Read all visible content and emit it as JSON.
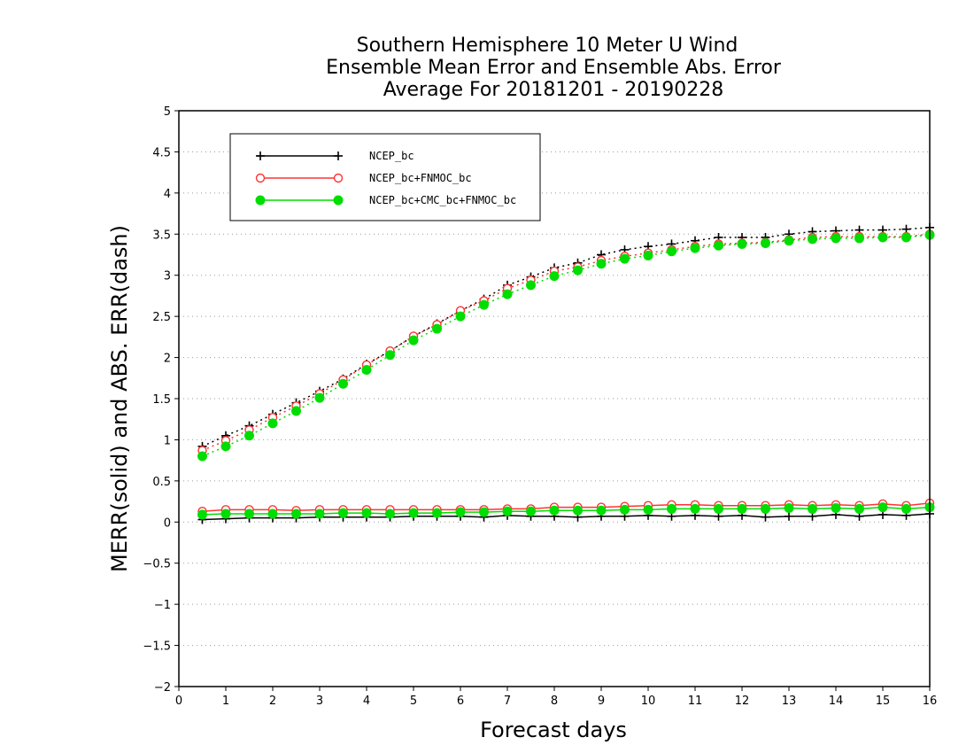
{
  "chart_data": {
    "type": "line",
    "title_lines": [
      "Southern Hemisphere 10 Meter U Wind",
      "Ensemble Mean Error and Ensemble Abs. Error",
      "Average For 20181201 - 20190228"
    ],
    "xlabel": "Forecast days",
    "ylabel": "MERR(solid) and ABS. ERR(dash)",
    "xlim": [
      0,
      16
    ],
    "ylim": [
      -2,
      5
    ],
    "x_ticks": [
      "0",
      "1",
      "2",
      "3",
      "4",
      "5",
      "6",
      "7",
      "8",
      "9",
      "10",
      "11",
      "12",
      "13",
      "14",
      "15",
      "16"
    ],
    "y_ticks": [
      "−2",
      "−1.5",
      "−1",
      "−0.5",
      "0",
      "0.5",
      "1",
      "1.5",
      "2",
      "2.5",
      "3",
      "3.5",
      "4",
      "4.5",
      "5"
    ],
    "grid": "horizontal dotted",
    "legend_placement": "top-left",
    "x": [
      0.5,
      1,
      1.5,
      2,
      2.5,
      3,
      3.5,
      4,
      4.5,
      5,
      5.5,
      6,
      6.5,
      7,
      7.5,
      8,
      8.5,
      9,
      9.5,
      10,
      10.5,
      11,
      11.5,
      12,
      12.5,
      13,
      13.5,
      14,
      14.5,
      15,
      15.5,
      16
    ],
    "series": [
      {
        "name": "NCEP_bc",
        "color": "#000000",
        "marker": "plus",
        "mean_error": [
          0.03,
          0.04,
          0.05,
          0.05,
          0.05,
          0.06,
          0.06,
          0.06,
          0.06,
          0.07,
          0.07,
          0.07,
          0.06,
          0.08,
          0.07,
          0.07,
          0.06,
          0.07,
          0.07,
          0.08,
          0.07,
          0.08,
          0.07,
          0.08,
          0.06,
          0.07,
          0.07,
          0.09,
          0.07,
          0.09,
          0.08,
          0.1
        ],
        "abs_error": [
          0.92,
          1.05,
          1.17,
          1.31,
          1.45,
          1.59,
          1.74,
          1.92,
          2.08,
          2.26,
          2.41,
          2.57,
          2.71,
          2.88,
          2.98,
          3.09,
          3.15,
          3.25,
          3.31,
          3.35,
          3.38,
          3.42,
          3.46,
          3.46,
          3.46,
          3.5,
          3.53,
          3.54,
          3.55,
          3.55,
          3.56,
          3.58
        ]
      },
      {
        "name": "NCEP_bc+FNMOC_bc",
        "color": "#ff3333",
        "marker": "open-circle",
        "mean_error": [
          0.13,
          0.15,
          0.15,
          0.15,
          0.14,
          0.15,
          0.15,
          0.15,
          0.15,
          0.15,
          0.15,
          0.15,
          0.15,
          0.16,
          0.16,
          0.18,
          0.18,
          0.18,
          0.19,
          0.2,
          0.21,
          0.21,
          0.2,
          0.2,
          0.2,
          0.21,
          0.2,
          0.21,
          0.2,
          0.22,
          0.2,
          0.23
        ],
        "abs_error": [
          0.87,
          0.99,
          1.12,
          1.27,
          1.41,
          1.56,
          1.73,
          1.91,
          2.08,
          2.26,
          2.4,
          2.57,
          2.69,
          2.84,
          2.94,
          3.05,
          3.1,
          3.18,
          3.23,
          3.27,
          3.31,
          3.35,
          3.38,
          3.39,
          3.4,
          3.43,
          3.46,
          3.47,
          3.47,
          3.47,
          3.47,
          3.5
        ]
      },
      {
        "name": "NCEP_bc+CMC_bc+FNMOC_bc",
        "color": "#00dd00",
        "marker": "filled-circle",
        "mean_error": [
          0.09,
          0.1,
          0.1,
          0.1,
          0.1,
          0.1,
          0.11,
          0.11,
          0.1,
          0.11,
          0.11,
          0.12,
          0.12,
          0.13,
          0.13,
          0.14,
          0.14,
          0.14,
          0.15,
          0.15,
          0.16,
          0.16,
          0.16,
          0.16,
          0.16,
          0.17,
          0.16,
          0.17,
          0.16,
          0.18,
          0.16,
          0.18
        ],
        "abs_error": [
          0.8,
          0.92,
          1.05,
          1.2,
          1.35,
          1.51,
          1.68,
          1.85,
          2.03,
          2.21,
          2.35,
          2.5,
          2.64,
          2.77,
          2.88,
          2.99,
          3.06,
          3.14,
          3.2,
          3.24,
          3.29,
          3.33,
          3.36,
          3.38,
          3.39,
          3.42,
          3.44,
          3.45,
          3.45,
          3.46,
          3.46,
          3.49
        ]
      }
    ]
  }
}
